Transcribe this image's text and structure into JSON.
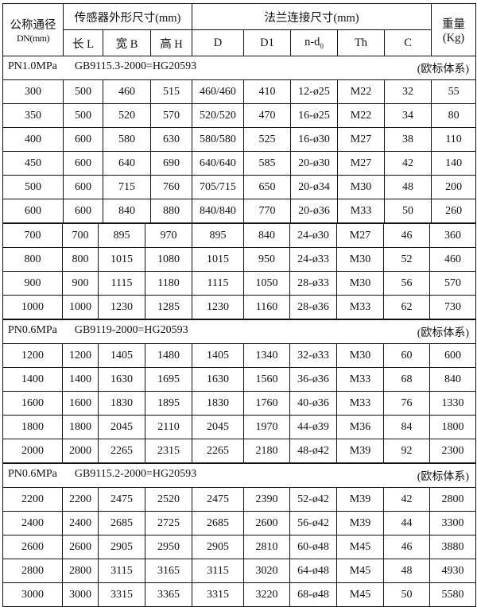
{
  "header": {
    "dn_label": "公称通径",
    "dn_unit": "DN(mm)",
    "sensor_group": "传感器外形尺寸(mm)",
    "flange_group": "法兰连接尺寸(mm)",
    "weight_label": "重量",
    "weight_unit": "(Kg)",
    "cols": [
      "长 L",
      "宽 B",
      "高 H",
      "D",
      "D1",
      "n-d",
      "Th",
      "C"
    ],
    "nd_subscript": "0"
  },
  "sections": [
    {
      "pressure": "PN1.0MPa",
      "standard": "GB9115.3-2000=HG20593",
      "system": "(欧标体系)",
      "rows": [
        [
          "300",
          "500",
          "460",
          "515",
          "460/460",
          "410",
          "12-ø25",
          "M22",
          "32",
          "55"
        ],
        [
          "350",
          "500",
          "520",
          "570",
          "520/520",
          "470",
          "16-ø25",
          "M22",
          "34",
          "80"
        ],
        [
          "400",
          "600",
          "580",
          "630",
          "580/580",
          "525",
          "16-ø30",
          "M27",
          "38",
          "110"
        ],
        [
          "450",
          "600",
          "640",
          "690",
          "640/640",
          "585",
          "20-ø30",
          "M27",
          "42",
          "140"
        ],
        [
          "500",
          "600",
          "715",
          "760",
          "705/715",
          "650",
          "20-ø34",
          "M30",
          "48",
          "200"
        ],
        [
          "600",
          "600",
          "840",
          "880",
          "840/840",
          "770",
          "20-ø36",
          "M33",
          "50",
          "260"
        ],
        [
          "700",
          "700",
          "895",
          "970",
          "895",
          "840",
          "24-ø30",
          "M27",
          "46",
          "360"
        ],
        [
          "800",
          "800",
          "1015",
          "1080",
          "1015",
          "950",
          "24-ø33",
          "M30",
          "52",
          "460"
        ],
        [
          "900",
          "900",
          "1115",
          "1180",
          "1115",
          "1050",
          "28-ø33",
          "M30",
          "56",
          "570"
        ],
        [
          "1000",
          "1000",
          "1230",
          "1285",
          "1230",
          "1160",
          "28-ø36",
          "M33",
          "62",
          "730"
        ]
      ]
    },
    {
      "pressure": "PN0.6MPa",
      "standard": "GB9119-2000=HG20593",
      "system": "(欧标体系)",
      "rows": [
        [
          "1200",
          "1200",
          "1405",
          "1480",
          "1405",
          "1340",
          "32-ø33",
          "M30",
          "60",
          "600"
        ],
        [
          "1400",
          "1400",
          "1630",
          "1695",
          "1630",
          "1560",
          "36-ø36",
          "M33",
          "68",
          "840"
        ],
        [
          "1600",
          "1600",
          "1830",
          "1895",
          "1830",
          "1760",
          "40-ø36",
          "M33",
          "76",
          "1330"
        ],
        [
          "1800",
          "1800",
          "2045",
          "2110",
          "2045",
          "1970",
          "44-ø39",
          "M36",
          "84",
          "1800"
        ],
        [
          "2000",
          "2000",
          "2265",
          "2315",
          "2265",
          "2180",
          "48-ø42",
          "M39",
          "92",
          "2300"
        ]
      ]
    },
    {
      "pressure": "PN0.6MPa",
      "standard": "GB9115.2-2000=HG20593",
      "system": "(欧标体系)",
      "rows": [
        [
          "2200",
          "2200",
          "2475",
          "2520",
          "2475",
          "2390",
          "52-ø42",
          "M39",
          "42",
          "2800"
        ],
        [
          "2400",
          "2400",
          "2685",
          "2725",
          "2685",
          "2600",
          "56-ø42",
          "M39",
          "44",
          "3300"
        ],
        [
          "2600",
          "2600",
          "2905",
          "2950",
          "2905",
          "2810",
          "60-ø48",
          "M45",
          "46",
          "3880"
        ],
        [
          "2800",
          "2800",
          "3115",
          "3165",
          "3115",
          "3020",
          "64-ø48",
          "M45",
          "48",
          "4930"
        ],
        [
          "3000",
          "3000",
          "3315",
          "3365",
          "3315",
          "3220",
          "68-ø48",
          "M45",
          "50",
          "5580"
        ]
      ]
    }
  ]
}
